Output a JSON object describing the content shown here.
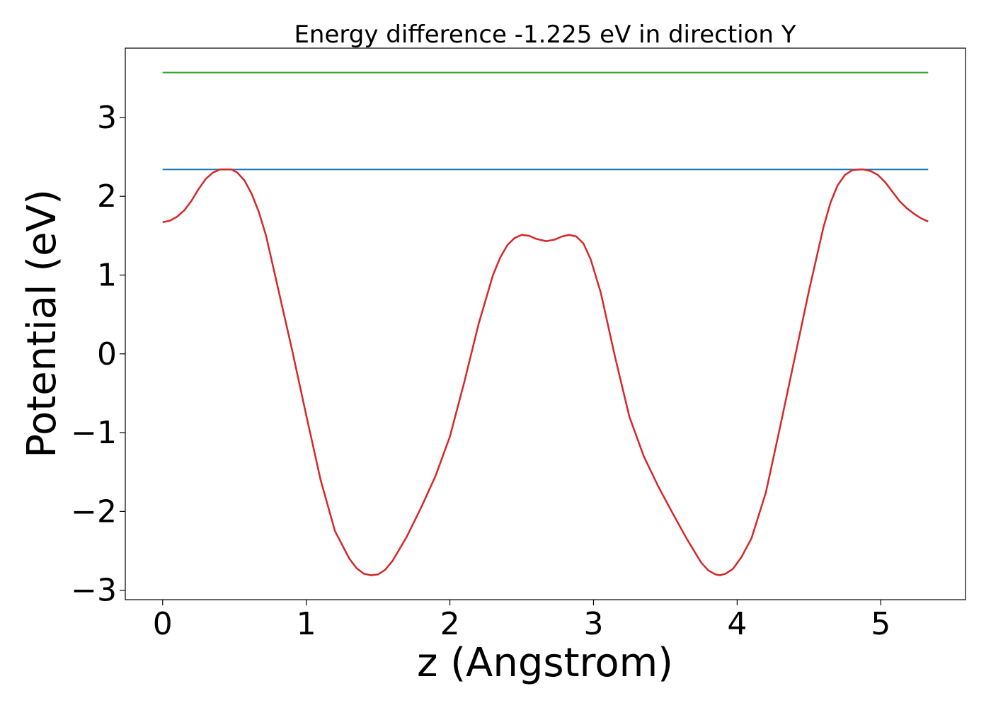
{
  "chart_data": {
    "type": "line",
    "title": "Energy difference -1.225 eV in direction Y",
    "xlabel": "z (Angstrom)",
    "ylabel": "Potential (eV)",
    "xlim": [
      -0.26,
      5.59
    ],
    "ylim": [
      -3.12,
      3.88
    ],
    "xticks": [
      {
        "value": 0,
        "label": "0"
      },
      {
        "value": 1,
        "label": "1"
      },
      {
        "value": 2,
        "label": "2"
      },
      {
        "value": 3,
        "label": "3"
      },
      {
        "value": 4,
        "label": "4"
      },
      {
        "value": 5,
        "label": "5"
      }
    ],
    "yticks": [
      {
        "value": -3,
        "label": "−3"
      },
      {
        "value": -2,
        "label": "−2"
      },
      {
        "value": -1,
        "label": "−1"
      },
      {
        "value": 0,
        "label": "0"
      },
      {
        "value": 1,
        "label": "1"
      },
      {
        "value": 2,
        "label": "2"
      },
      {
        "value": 3,
        "label": "3"
      }
    ],
    "grid": false,
    "series": [
      {
        "color": "#2ca02c",
        "x": [
          0,
          5.33
        ],
        "y": [
          3.57,
          3.57
        ]
      },
      {
        "color": "#1f77b4",
        "x": [
          0,
          5.33
        ],
        "y": [
          2.34,
          2.34
        ]
      },
      {
        "color": "#d62728",
        "x": [
          0,
          0.05,
          0.1,
          0.15,
          0.2,
          0.25,
          0.3,
          0.35,
          0.4,
          0.45,
          0.48,
          0.52,
          0.57,
          0.62,
          0.67,
          0.72,
          0.8,
          0.9,
          1.0,
          1.1,
          1.2,
          1.3,
          1.35,
          1.4,
          1.45,
          1.5,
          1.55,
          1.6,
          1.7,
          1.8,
          1.9,
          2.0,
          2.1,
          2.2,
          2.3,
          2.35,
          2.4,
          2.45,
          2.5,
          2.55,
          2.6,
          2.67,
          2.73,
          2.78,
          2.83,
          2.88,
          2.93,
          2.98,
          3.05,
          3.15,
          3.25,
          3.35,
          3.45,
          3.55,
          3.65,
          3.75,
          3.8,
          3.85,
          3.88,
          3.92,
          3.97,
          4.03,
          4.1,
          4.2,
          4.3,
          4.4,
          4.5,
          4.6,
          4.65,
          4.7,
          4.75,
          4.8,
          4.85,
          4.88,
          4.93,
          4.98,
          5.03,
          5.08,
          5.13,
          5.18,
          5.23,
          5.28,
          5.33
        ],
        "y": [
          1.67,
          1.69,
          1.74,
          1.82,
          1.94,
          2.09,
          2.22,
          2.3,
          2.34,
          2.34,
          2.34,
          2.3,
          2.2,
          2.03,
          1.8,
          1.5,
          0.86,
          0.06,
          -0.78,
          -1.6,
          -2.25,
          -2.6,
          -2.72,
          -2.79,
          -2.81,
          -2.8,
          -2.74,
          -2.63,
          -2.32,
          -1.95,
          -1.55,
          -1.05,
          -0.36,
          0.38,
          1.0,
          1.22,
          1.38,
          1.47,
          1.51,
          1.5,
          1.46,
          1.43,
          1.45,
          1.49,
          1.51,
          1.49,
          1.4,
          1.2,
          0.78,
          -0.04,
          -0.8,
          -1.3,
          -1.68,
          -2.02,
          -2.35,
          -2.65,
          -2.75,
          -2.8,
          -2.81,
          -2.79,
          -2.73,
          -2.58,
          -2.34,
          -1.76,
          -0.92,
          -0.06,
          0.8,
          1.6,
          1.92,
          2.14,
          2.27,
          2.33,
          2.34,
          2.34,
          2.32,
          2.27,
          2.18,
          2.06,
          1.94,
          1.85,
          1.78,
          1.72,
          1.68
        ]
      }
    ]
  }
}
